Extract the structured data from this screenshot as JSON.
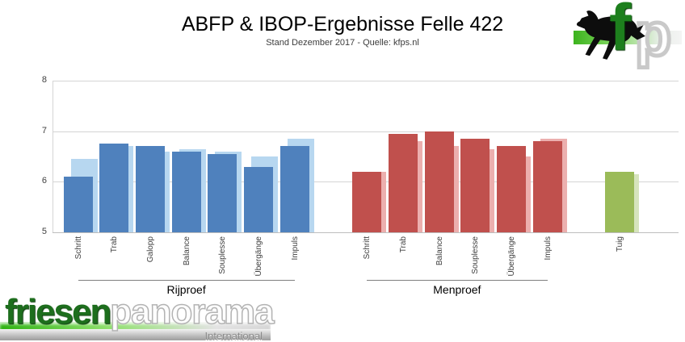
{
  "fp_logo": {
    "letter_f": "f",
    "letter_p": "p"
  },
  "footer_logo": {
    "friesen": "friesen",
    "panorama": "panorama",
    "international": "International",
    "green": "#1d6e1d"
  },
  "chart_data": {
    "type": "bar",
    "title": "ABFP & IBOP-Ergebnisse Felle 422",
    "subtitle": "Stand Dezember 2017 - Quelle: kfps.nl",
    "xlabel": "",
    "ylabel": "",
    "ylim": [
      5,
      8
    ],
    "yticks": [
      5,
      6,
      7,
      8
    ],
    "grid": "horizontal",
    "legend": "none",
    "groups": [
      {
        "name": "Rijproef",
        "color_front": "#4F81BD",
        "color_back": "#B7D7F0",
        "categories": [
          "Schritt",
          "Trab",
          "Galopp",
          "Balance",
          "Souplesse",
          "Übergänge",
          "Impuls"
        ],
        "series": [
          {
            "name": "dark-front",
            "values": [
              6.1,
              6.75,
              6.7,
              6.6,
              6.55,
              6.3,
              6.7
            ]
          },
          {
            "name": "light-back",
            "values": [
              6.45,
              6.7,
              6.6,
              6.65,
              6.6,
              6.5,
              6.85
            ]
          }
        ]
      },
      {
        "name": "Menproef",
        "color_front": "#C0504D",
        "color_back": "#ECAFAE",
        "categories": [
          "Schritt",
          "Trab",
          "Balance",
          "Souplesse",
          "Übergänge",
          "Impuls"
        ],
        "series": [
          {
            "name": "dark-front",
            "values": [
              6.2,
              6.95,
              7.0,
              6.85,
              6.7,
              6.8
            ]
          },
          {
            "name": "light-back",
            "values": [
              6.2,
              6.8,
              6.7,
              6.65,
              6.5,
              6.85
            ]
          }
        ]
      },
      {
        "name": "",
        "color_front": "#9BBB59",
        "color_back": "#D6E4BC",
        "categories": [
          "Tuig"
        ],
        "series": [
          {
            "name": "dark-front",
            "values": [
              6.2
            ]
          },
          {
            "name": "light-back",
            "values": [
              6.15
            ]
          }
        ]
      }
    ]
  }
}
